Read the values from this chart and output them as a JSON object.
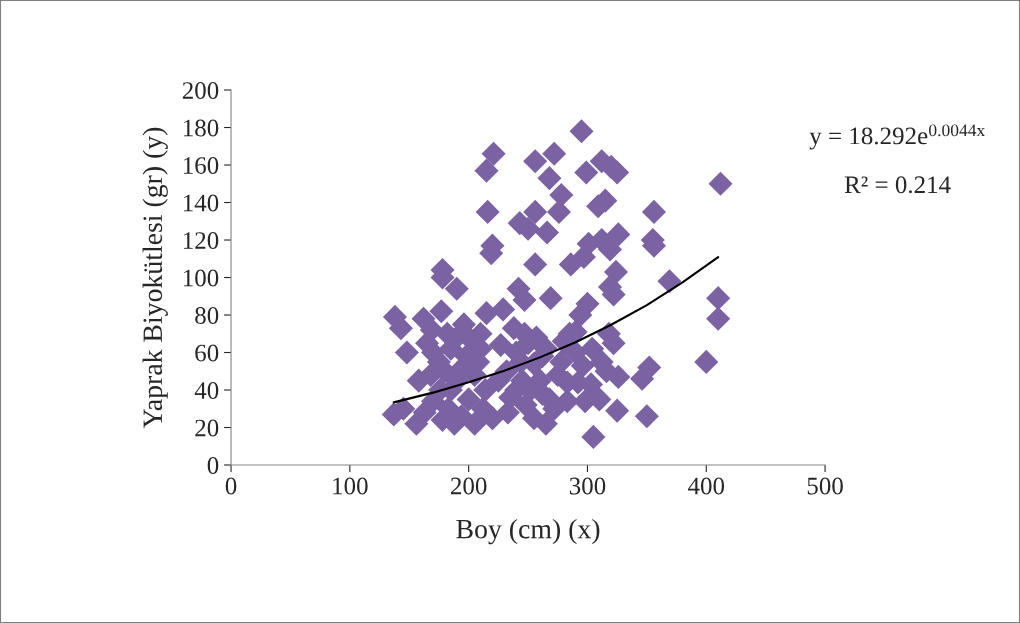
{
  "chart_data": {
    "type": "scatter",
    "xlabel": "Boy (cm) (x)",
    "ylabel": "Yaprak Biyokütlesi (gr) (y)",
    "xlim": [
      0,
      500
    ],
    "xticks": [
      0,
      100,
      200,
      300,
      400,
      500
    ],
    "ylim": [
      0,
      200
    ],
    "yticks": [
      0,
      20,
      40,
      60,
      80,
      100,
      120,
      140,
      160,
      180,
      200
    ],
    "grid": false,
    "legend": false,
    "marker": "diamond",
    "annotations": [
      "y = 18.292e$^{0.0044x}$",
      "R² = 0.214"
    ],
    "series": [
      {
        "color": "#7b62a3",
        "x": [
          295,
          221,
          272,
          215,
          256,
          312,
          320,
          325,
          299,
          268,
          278,
          315,
          309,
          216,
          256,
          276,
          356,
          243,
          250,
          266,
          326,
          312,
          301,
          355,
          356,
          319,
          220,
          219,
          297,
          286,
          256,
          178,
          178,
          324,
          369,
          319,
          322,
          190,
          242,
          412,
          410,
          410,
          400,
          352,
          346,
          350,
          305,
          325,
          310,
          298,
          283,
          269,
          247,
          300,
          294,
          215,
          229,
          138,
          143,
          148,
          162,
          177,
          196,
          182,
          169,
          200,
          210,
          227,
          238,
          247,
          257,
          265,
          280,
          290,
          318,
          322,
          304,
          312,
          326,
          290,
          275,
          283,
          292,
          262,
          255,
          245,
          240,
          248,
          255,
          265,
          272,
          262,
          235,
          233,
          220,
          214,
          205,
          198,
          185,
          175,
          168,
          158,
          156,
          163,
          170,
          176,
          183,
          188,
          194,
          200,
          205,
          212,
          190,
          180,
          170,
          185,
          195,
          208,
          137,
          145,
          225,
          232,
          240,
          250,
          260,
          268,
          278,
          285,
          296,
          303,
          316,
          244,
          252,
          210,
          178,
          165,
          190
        ],
        "values": [
          178,
          166,
          166,
          157,
          162,
          162,
          159,
          156,
          156,
          153,
          144,
          141,
          138,
          135,
          135,
          135,
          135,
          129,
          126,
          124,
          123,
          120,
          118,
          120,
          117,
          115,
          117,
          113,
          111,
          107,
          107,
          104,
          100,
          103,
          98,
          95,
          91,
          94,
          94,
          150,
          89,
          78,
          55,
          52,
          46,
          26,
          15,
          29,
          35,
          34,
          34,
          89,
          88,
          86,
          80,
          81,
          83,
          79,
          73,
          60,
          78,
          82,
          75,
          70,
          72,
          68,
          62,
          64,
          73,
          70,
          68,
          62,
          66,
          71,
          70,
          65,
          62,
          55,
          47,
          60,
          48,
          44,
          44,
          58,
          54,
          45,
          40,
          32,
          25,
          22,
          30,
          38,
          36,
          28,
          25,
          40,
          48,
          58,
          62,
          55,
          48,
          45,
          22,
          28,
          34,
          40,
          30,
          22,
          26,
          35,
          22,
          30,
          45,
          50,
          60,
          40,
          52,
          55,
          27,
          30,
          45,
          50,
          60,
          65,
          45,
          35,
          55,
          70,
          53,
          43,
          50,
          55,
          40,
          70,
          24,
          65,
          68
        ]
      },
      {
        "type": "line",
        "color": "#000000",
        "marker": "none",
        "x": [
          137,
          170,
          200,
          230,
          260,
          290,
          320,
          350,
          380,
          410
        ],
        "values": [
          33.4,
          38.6,
          44.1,
          50.3,
          57.4,
          65.5,
          74.8,
          85.3,
          97.4,
          110.9
        ]
      }
    ]
  }
}
